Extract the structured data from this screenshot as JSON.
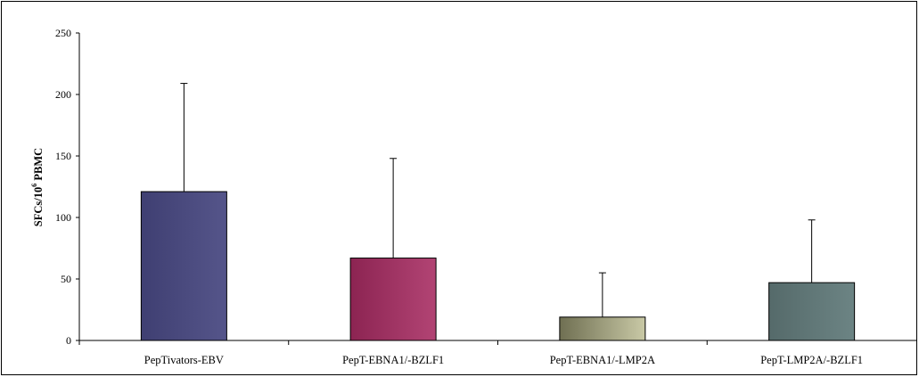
{
  "chart_data": {
    "type": "bar",
    "title": "",
    "xlabel": "",
    "ylabel": {
      "base": "SFCs/10",
      "superscript": "6",
      "suffix": " PBMC"
    },
    "ylim": [
      0,
      250
    ],
    "yticks": [
      "0",
      "50",
      "100",
      "150",
      "200",
      "250"
    ],
    "categories": [
      "PepTivators-EBV",
      "PepT-EBNA1/-BZLF1",
      "PepT-EBNA1/-LMP2A",
      "PepT-LMP2A/-BZLF1"
    ],
    "values": [
      121,
      67,
      19,
      47
    ],
    "error_upper": [
      88,
      81,
      36,
      51
    ],
    "colors": [
      "#4a4a7e",
      "#9a2e5e",
      "#8a8a68",
      "#5e7474"
    ],
    "grid": false,
    "legend": "none"
  }
}
